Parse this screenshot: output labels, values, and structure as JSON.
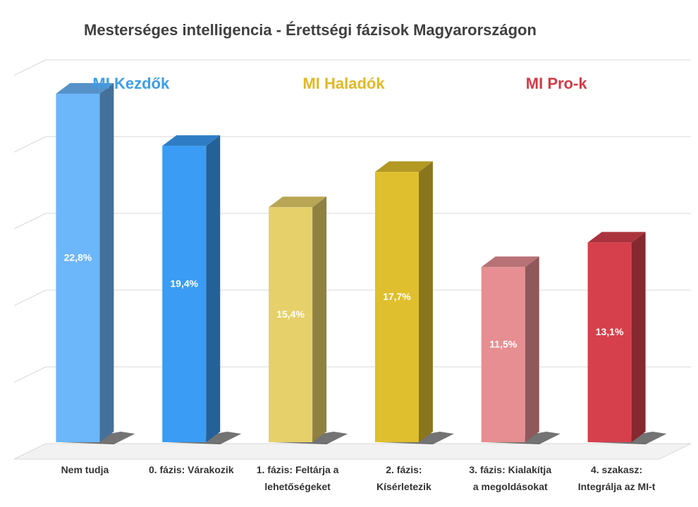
{
  "chart_data": {
    "type": "bar",
    "title": "Mesterséges intelligencia - Érettségi fázisok Magyarországon",
    "categories": [
      [
        "Nem tudja"
      ],
      [
        "0. fázis: Várakozik"
      ],
      [
        "1. fázis: Feltárja a",
        "lehetőségeket"
      ],
      [
        "2. fázis:",
        "Kísérletezik"
      ],
      [
        "3. fázis: Kialakítja",
        "a megoldásokat"
      ],
      [
        "4. szakasz:",
        "Integrálja az MI-t"
      ]
    ],
    "values": [
      22.8,
      19.4,
      15.4,
      17.7,
      11.5,
      13.1
    ],
    "value_labels": [
      "22,8%",
      "19,4%",
      "15,4%",
      "17,7%",
      "11,5%",
      "13,1%"
    ],
    "ylim": [
      0,
      25
    ],
    "grid": true,
    "bar_colors": [
      "#6cb6fa",
      "#3a9cf5",
      "#e6d06a",
      "#dfbf2d",
      "#e68e92",
      "#d6404c"
    ],
    "groups": [
      {
        "label": "MI Kezdők",
        "color": "#3d9ee8"
      },
      {
        "label": "MI Haladók",
        "color": "#e0b925"
      },
      {
        "label": "MI Pro-k",
        "color": "#d43a47"
      }
    ]
  }
}
